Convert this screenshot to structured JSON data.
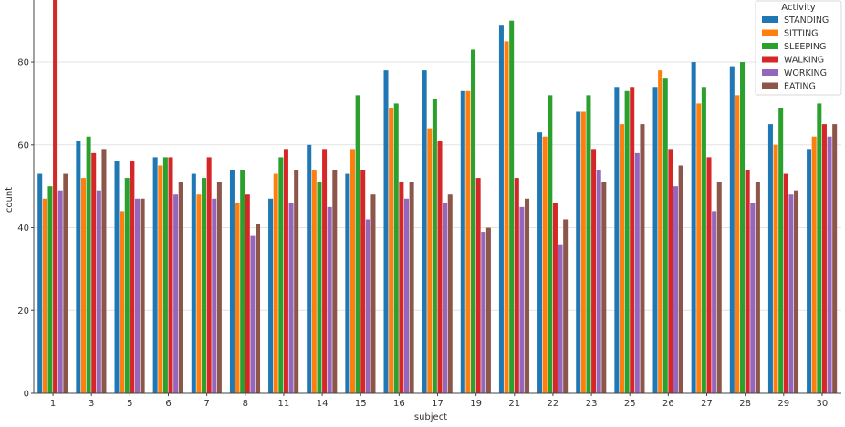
{
  "chart_data": {
    "type": "bar",
    "xlabel": "subject",
    "ylabel": "count",
    "ylim": [
      0,
      95
    ],
    "yticks": [
      0,
      20,
      40,
      60,
      80
    ],
    "grid": true,
    "categories": [
      "1",
      "3",
      "5",
      "6",
      "7",
      "8",
      "11",
      "14",
      "15",
      "16",
      "17",
      "19",
      "21",
      "22",
      "23",
      "25",
      "26",
      "27",
      "28",
      "29",
      "30"
    ],
    "legend": {
      "title": "Activity",
      "placement": "top-right"
    },
    "series": [
      {
        "name": "STANDING",
        "color": "#1f77b4",
        "values": [
          53,
          61,
          56,
          57,
          53,
          54,
          47,
          60,
          53,
          78,
          78,
          73,
          89,
          63,
          68,
          74,
          74,
          80,
          79,
          65,
          59
        ]
      },
      {
        "name": "SITTING",
        "color": "#ff7f0e",
        "values": [
          47,
          52,
          44,
          55,
          48,
          46,
          53,
          54,
          59,
          69,
          64,
          73,
          85,
          62,
          68,
          65,
          78,
          70,
          72,
          60,
          62
        ]
      },
      {
        "name": "SLEEPING",
        "color": "#2ca02c",
        "values": [
          50,
          62,
          52,
          57,
          52,
          54,
          57,
          51,
          72,
          70,
          71,
          83,
          90,
          72,
          72,
          73,
          76,
          74,
          80,
          69,
          70
        ]
      },
      {
        "name": "WALKING",
        "color": "#d62728",
        "values": [
          95,
          58,
          56,
          57,
          57,
          48,
          59,
          59,
          54,
          51,
          61,
          52,
          52,
          46,
          59,
          74,
          59,
          57,
          54,
          53,
          65
        ]
      },
      {
        "name": "WORKING",
        "color": "#9467bd",
        "values": [
          49,
          49,
          47,
          48,
          47,
          38,
          46,
          45,
          42,
          47,
          46,
          39,
          45,
          36,
          54,
          58,
          50,
          44,
          46,
          48,
          62
        ]
      },
      {
        "name": "EATING",
        "color": "#8c564b",
        "values": [
          53,
          59,
          47,
          51,
          51,
          41,
          54,
          54,
          48,
          51,
          48,
          40,
          47,
          42,
          51,
          65,
          55,
          51,
          51,
          49,
          65
        ]
      }
    ]
  }
}
